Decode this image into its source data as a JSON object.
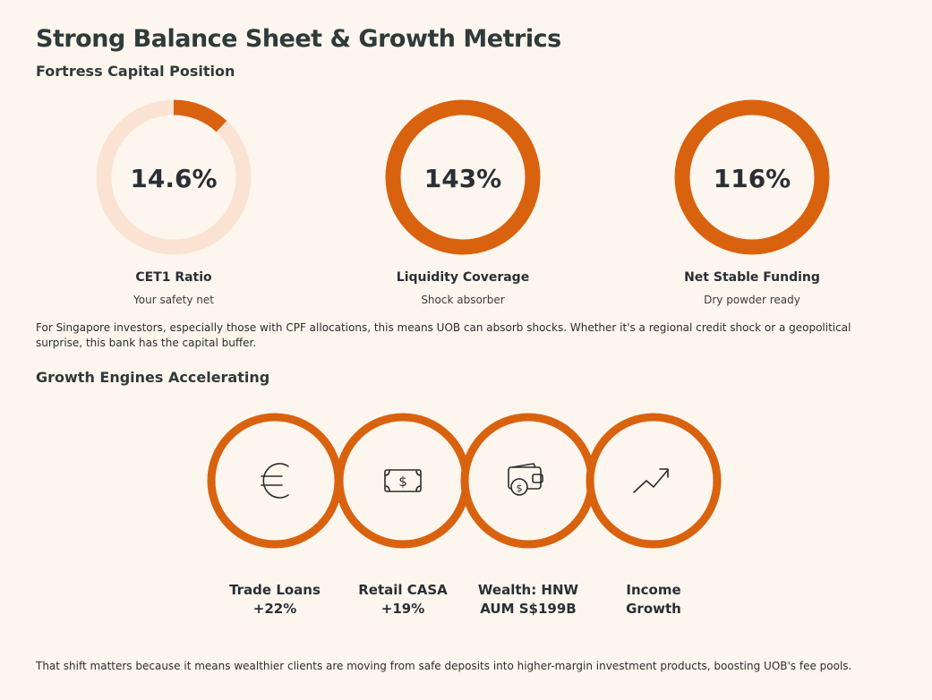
{
  "page": {
    "title": "Strong Balance Sheet & Growth Metrics",
    "subtitle": "Fortress Capital Position"
  },
  "colors": {
    "accent": "#d9620f",
    "track": "#fbe3d3",
    "background": "#fdf6ee"
  },
  "gauges": [
    {
      "value_text": "14.6%",
      "fill_fraction": 0.12,
      "label": "CET1 Ratio",
      "sub": "Your safety net"
    },
    {
      "value_text": "143%",
      "fill_fraction": 1.0,
      "label": "Liquidity Coverage",
      "sub": "Shock absorber"
    },
    {
      "value_text": "116%",
      "fill_fraction": 1.0,
      "label": "Net Stable Funding",
      "sub": "Dry powder ready"
    }
  ],
  "paragraph1": "For Singapore investors, especially those with CPF allocations, this means UOB can absorb shocks. Whether it's a regional credit shock or a geopolitical surprise, this bank has the capital buffer.",
  "growth": {
    "title": "Growth Engines Accelerating",
    "engines": [
      {
        "icon": "euro-icon",
        "line1": "Trade Loans",
        "line2": "+22%"
      },
      {
        "icon": "banknote-icon",
        "line1": "Retail CASA",
        "line2": "+19%"
      },
      {
        "icon": "wallet-icon",
        "line1": "Wealth: HNW",
        "line2": "AUM S$199B"
      },
      {
        "icon": "trend-up-icon",
        "line1": "Income",
        "line2": "Growth"
      }
    ]
  },
  "paragraph2": "That shift matters because it means wealthier clients are moving from safe deposits into higher-margin investment products, boosting UOB's fee pools."
}
